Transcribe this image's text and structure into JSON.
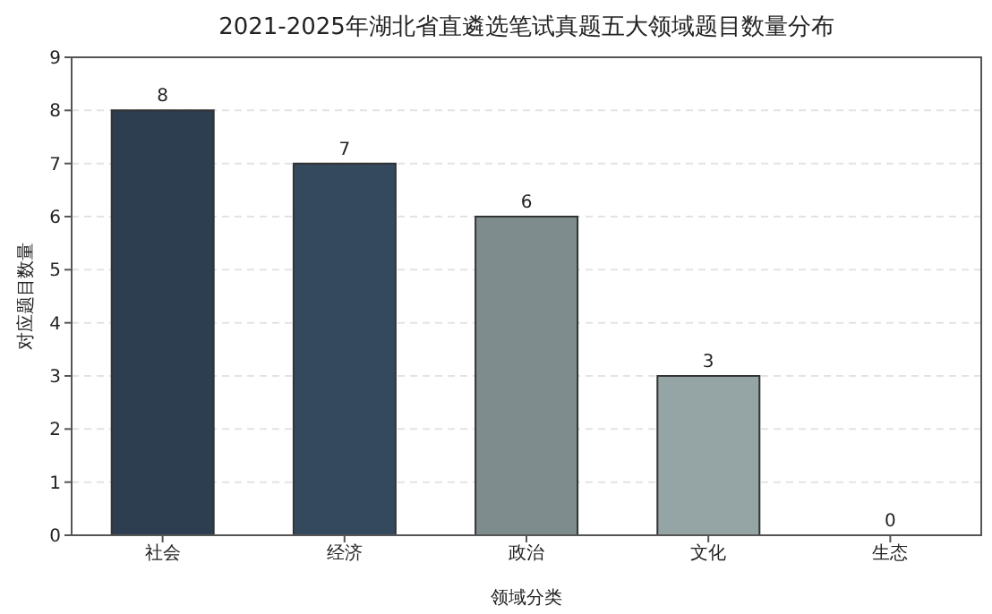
{
  "chart_data": {
    "type": "bar",
    "title": "2021-2025年湖北省直遴选笔试真题五大领域题目数量分布",
    "xlabel": "领域分类",
    "ylabel": "对应题目数量",
    "categories": [
      "社会",
      "经济",
      "政治",
      "文化",
      "生态"
    ],
    "values": [
      8,
      7,
      6,
      3,
      0
    ],
    "colors": [
      "#2c3e50",
      "#34495e",
      "#7f8c8d",
      "#95a5a6",
      "#bdc3c7"
    ],
    "ylim": [
      0,
      9
    ],
    "yticks": [
      0,
      1,
      2,
      3,
      4,
      5,
      6,
      7,
      8,
      9
    ],
    "grid": "y",
    "data_labels": true
  }
}
